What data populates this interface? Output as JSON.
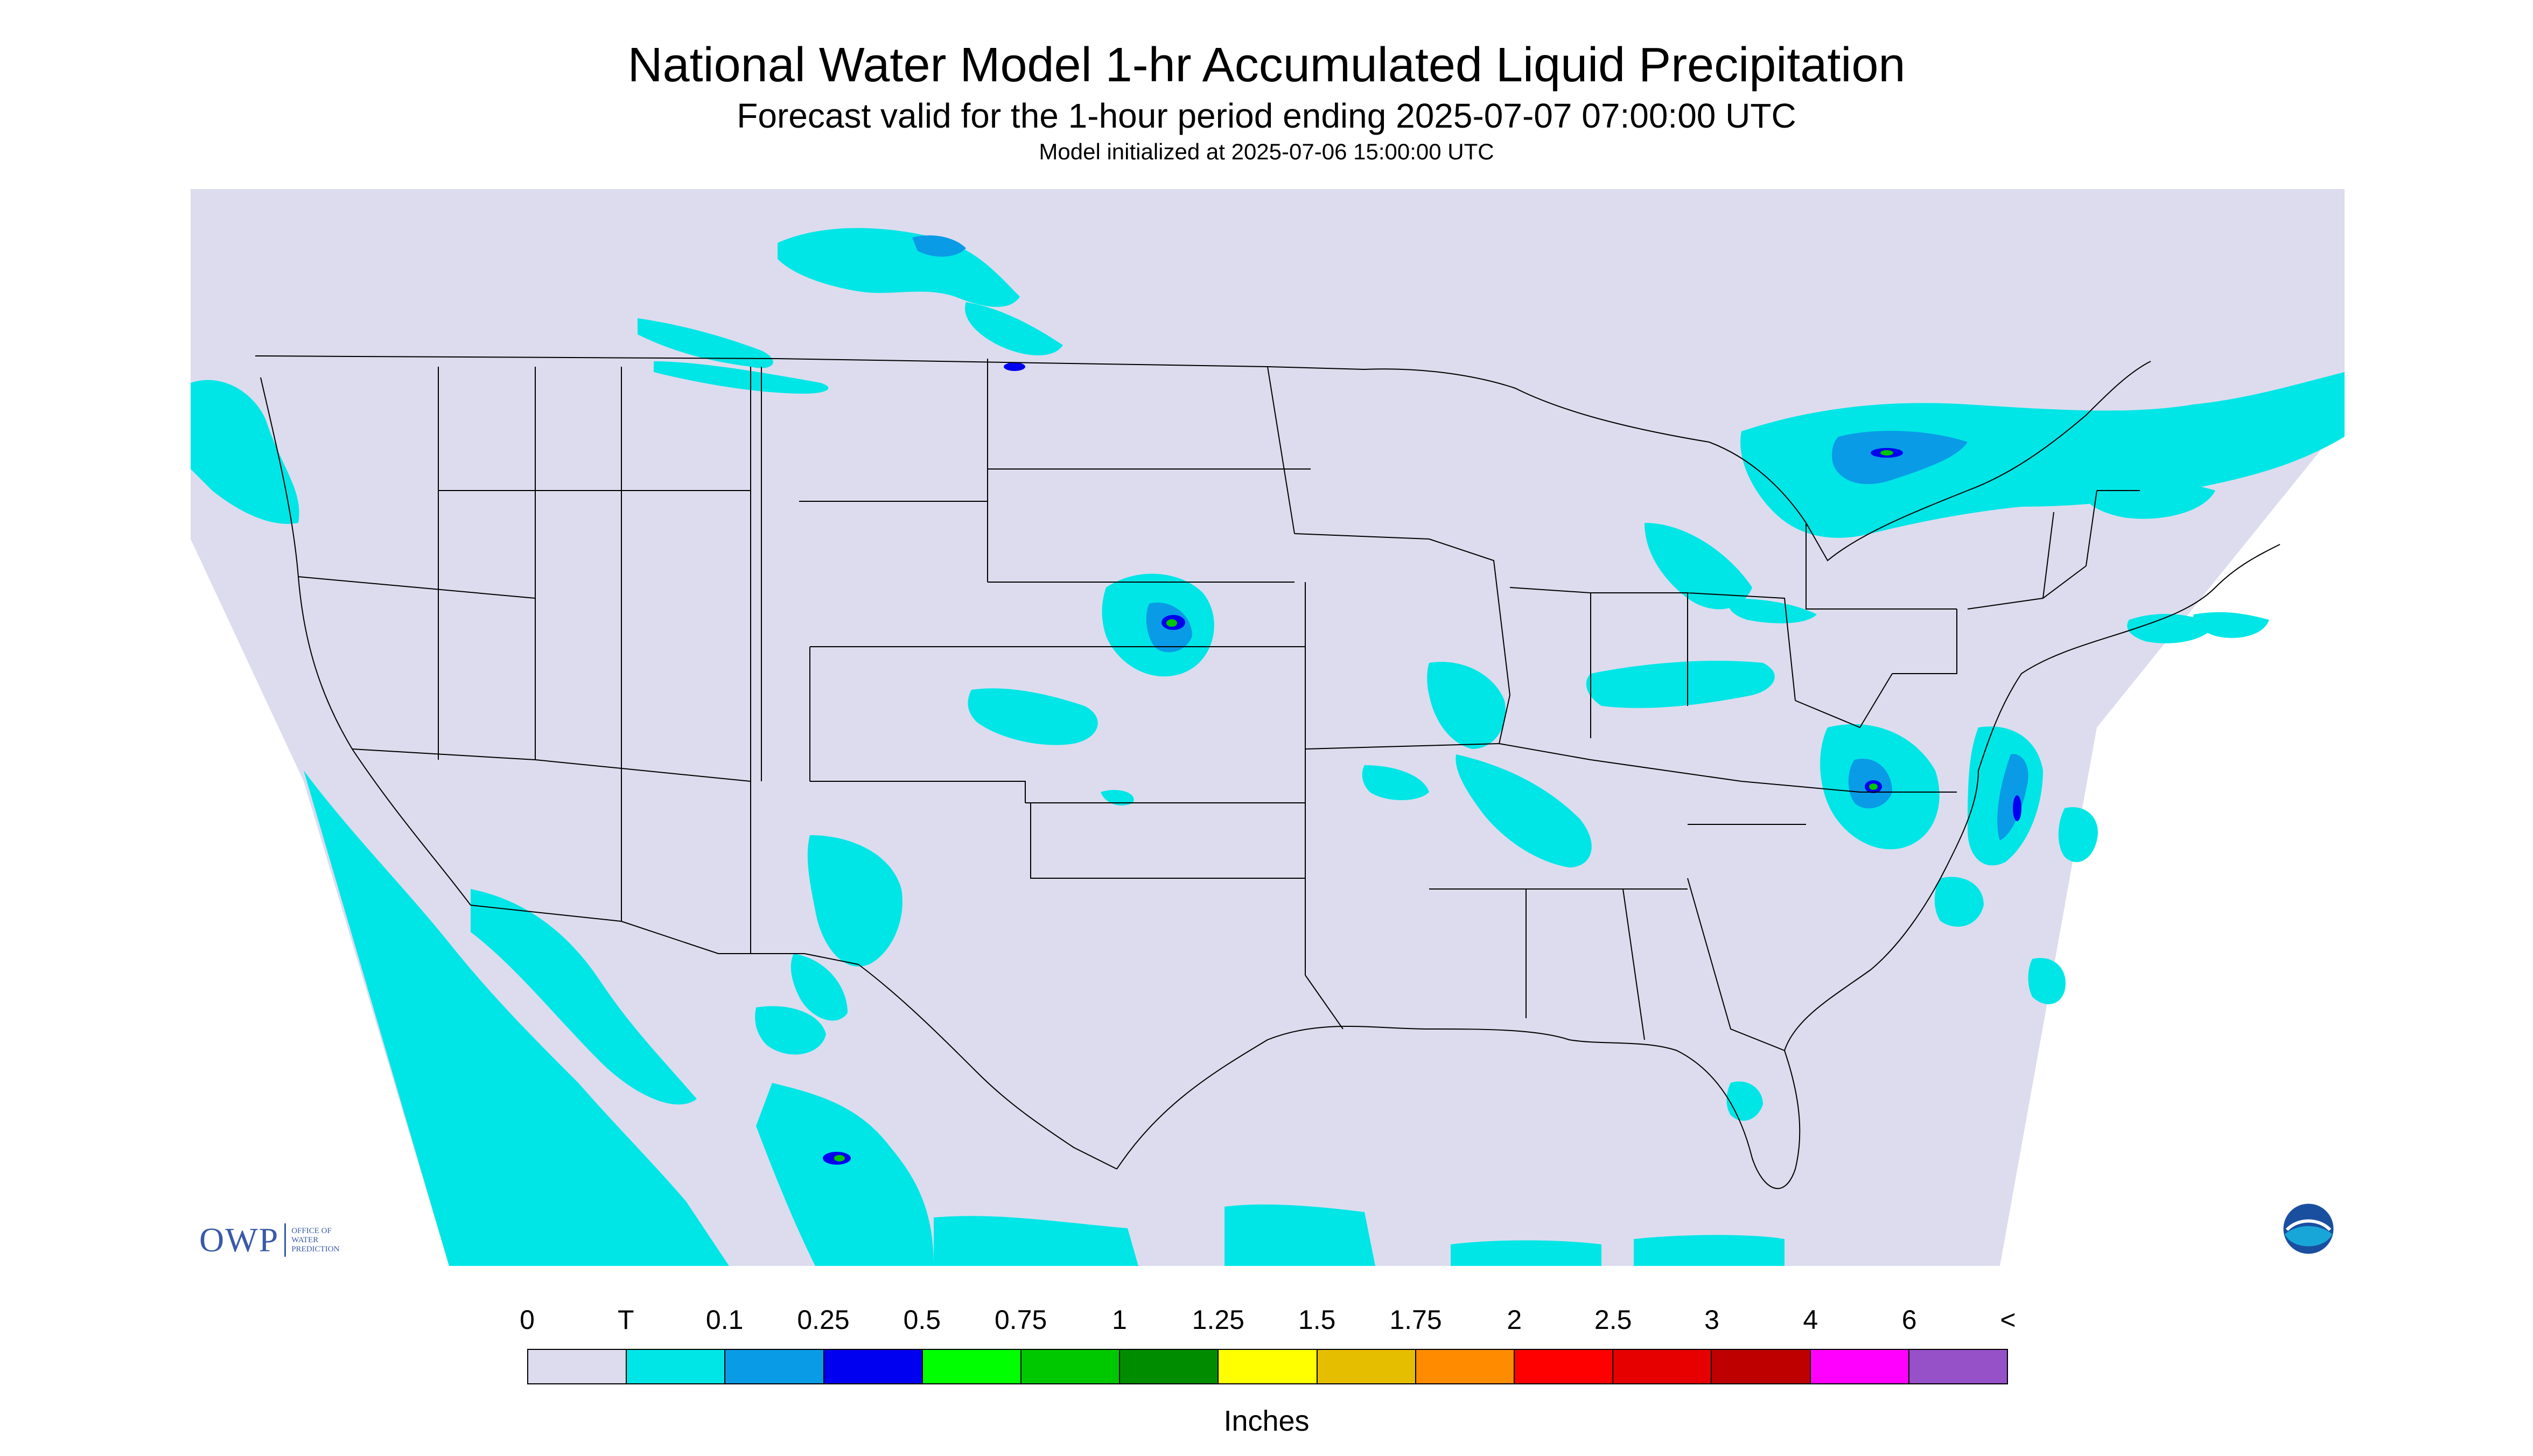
{
  "header": {
    "title": "National Water Model 1-hr Accumulated Liquid Precipitation",
    "subtitle": "Forecast valid for the 1-hour period ending 2025-07-07 07:00:00 UTC",
    "init": "Model initialized at 2025-07-06 15:00:00 UTC"
  },
  "legend": {
    "labels": [
      "0",
      "T",
      "0.1",
      "0.25",
      "0.5",
      "0.75",
      "1",
      "1.25",
      "1.5",
      "1.75",
      "2",
      "2.5",
      "3",
      "4",
      "6",
      "<"
    ],
    "colors": [
      "#dcdcee",
      "#00e6e6",
      "#0a9be6",
      "#0000f0",
      "#00ff00",
      "#00c800",
      "#008c00",
      "#ffff00",
      "#e6be00",
      "#ff8c00",
      "#ff0000",
      "#e60000",
      "#be0000",
      "#ff00ff",
      "#9650c8"
    ],
    "units": "Inches"
  },
  "logos": {
    "owp_mark": "OWP",
    "owp_text": [
      "OFFICE OF",
      "WATER",
      "PREDICTION"
    ],
    "noaa": "NOAA"
  },
  "map": {
    "background": "#dcdcee",
    "trace_color": "#00e6e6",
    "light_color": "#0a9be6",
    "heavy_color": "#0000f0",
    "green_color": "#00c800",
    "border_color": "#000000"
  }
}
